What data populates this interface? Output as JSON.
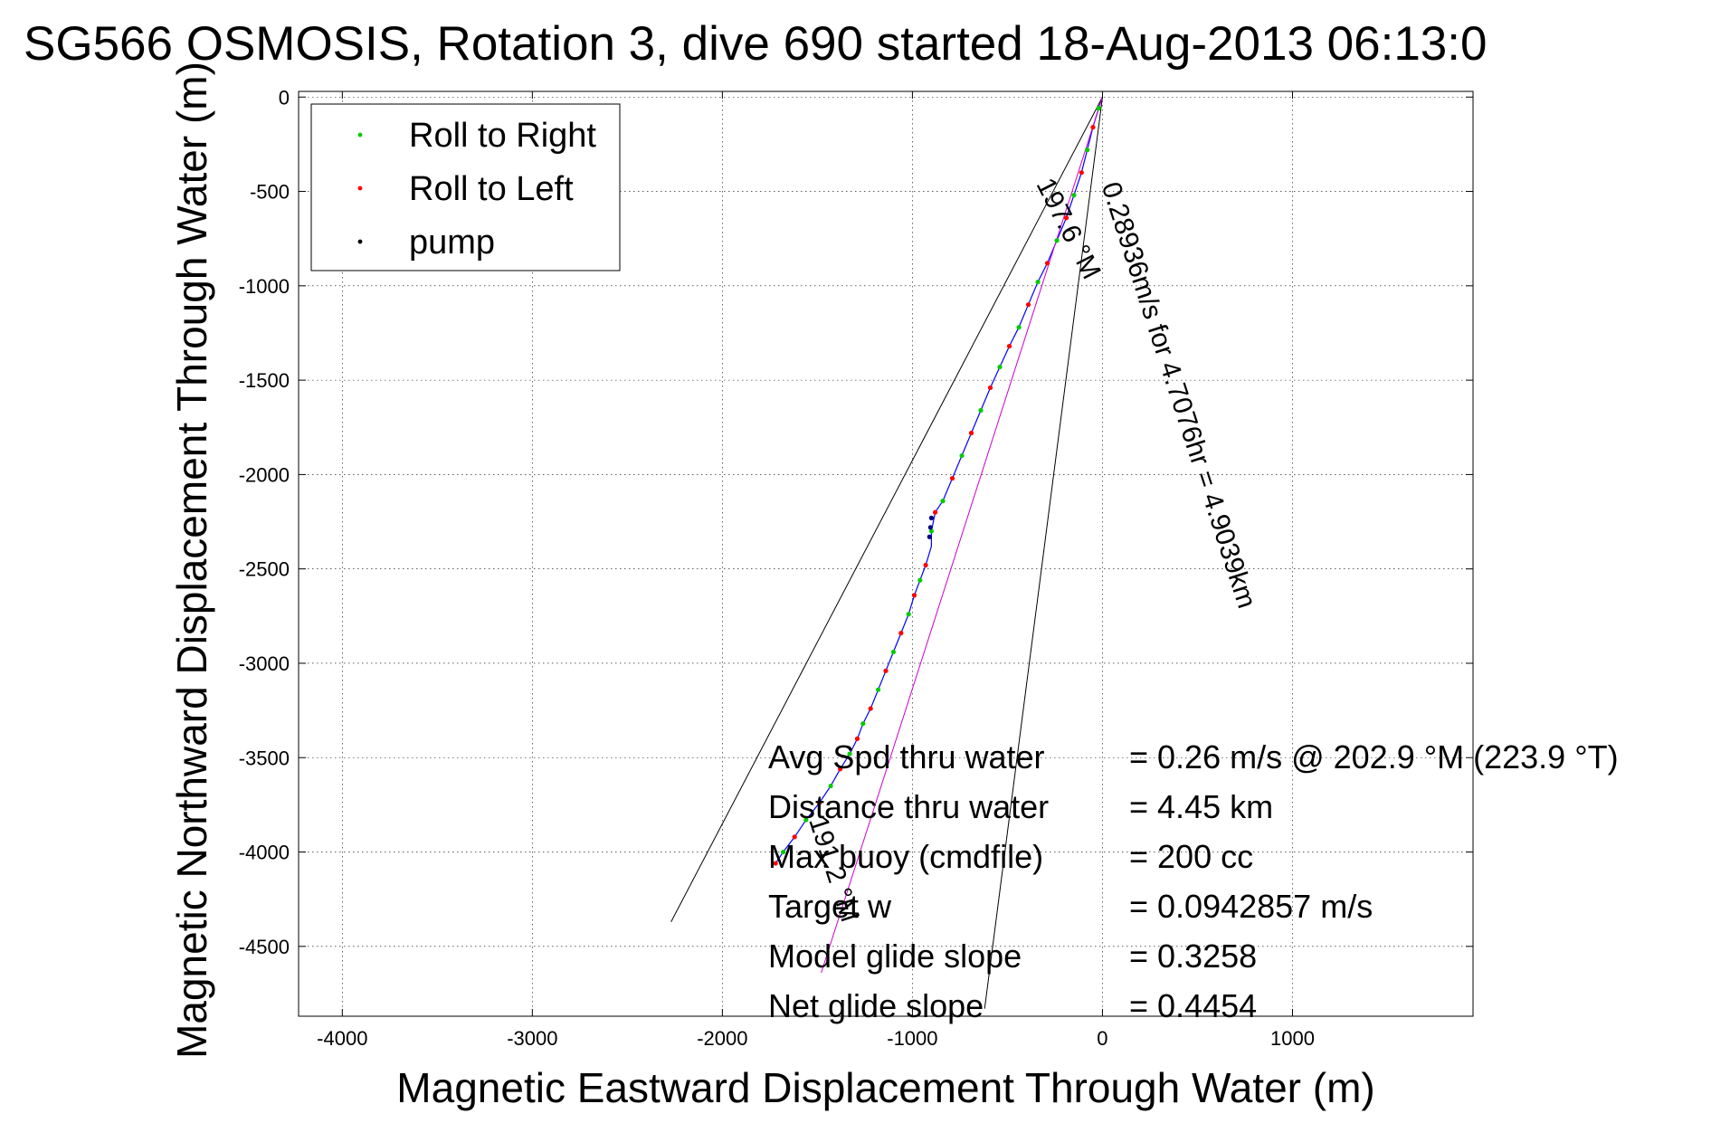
{
  "chart_data": {
    "type": "line",
    "title": "SG566 OSMOSIS, Rotation 3, dive 690 started 18-Aug-2013 06:13:0",
    "xlabel": "Magnetic Eastward Displacement Through Water (m)",
    "ylabel": "Magnetic Northward Displacement Through Water (m)",
    "xlim": [
      -4230,
      1950
    ],
    "ylim": [
      -4870,
      30
    ],
    "xticks": [
      -4000,
      -3000,
      -2000,
      -1000,
      0,
      1000
    ],
    "yticks": [
      0,
      -500,
      -1000,
      -1500,
      -2000,
      -2500,
      -3000,
      -3500,
      -4000,
      -4500
    ],
    "grid": true,
    "legend_position": "top-left",
    "legend": [
      {
        "label": "Roll to Right",
        "color": "#00cc00"
      },
      {
        "label": "Roll to Left",
        "color": "#ff0000"
      },
      {
        "label": "pump",
        "color": "#000000"
      }
    ],
    "series": [
      {
        "type": "line",
        "color": "#0000ff",
        "x": [
          0,
          -20,
          -50,
          -80,
          -110,
          -150,
          -190,
          -240,
          -290,
          -340,
          -390,
          -440,
          -490,
          -540,
          -590,
          -640,
          -690,
          -740,
          -790,
          -840,
          -880,
          -900,
          -900,
          -930,
          -960,
          -990,
          -1020,
          -1060,
          -1100,
          -1140,
          -1180,
          -1220,
          -1260,
          -1290,
          -1330,
          -1380,
          -1430,
          -1490,
          -1560,
          -1620,
          -1680,
          -1720
        ],
        "y": [
          0,
          -60,
          -160,
          -280,
          -400,
          -520,
          -640,
          -760,
          -880,
          -980,
          -1100,
          -1220,
          -1320,
          -1430,
          -1540,
          -1660,
          -1780,
          -1900,
          -2020,
          -2140,
          -2200,
          -2300,
          -2380,
          -2480,
          -2560,
          -2640,
          -2740,
          -2840,
          -2940,
          -3040,
          -3140,
          -3240,
          -3320,
          -3400,
          -3480,
          -3560,
          -3650,
          -3740,
          -3830,
          -3920,
          -4000,
          -4060
        ]
      },
      {
        "type": "line",
        "color": "#cc00cc",
        "x": [
          0,
          -1480
        ],
        "y": [
          0,
          -4640
        ]
      }
    ],
    "markers_right": {
      "color": "#00cc00",
      "x": [
        -20,
        -80,
        -150,
        -240,
        -340,
        -440,
        -540,
        -640,
        -740,
        -840,
        -900,
        -960,
        -1020,
        -1100,
        -1180,
        -1260,
        -1330,
        -1430,
        -1560,
        -1680
      ],
      "y": [
        -60,
        -280,
        -520,
        -760,
        -980,
        -1220,
        -1430,
        -1660,
        -1900,
        -2140,
        -2300,
        -2560,
        -2740,
        -2940,
        -3140,
        -3320,
        -3480,
        -3650,
        -3830,
        -4000
      ]
    },
    "markers_left": {
      "color": "#ff0000",
      "x": [
        -50,
        -110,
        -190,
        -290,
        -390,
        -490,
        -590,
        -690,
        -790,
        -880,
        -930,
        -990,
        -1060,
        -1140,
        -1220,
        -1290,
        -1380,
        -1490,
        -1620,
        -1720
      ],
      "y": [
        -160,
        -400,
        -640,
        -880,
        -1100,
        -1320,
        -1540,
        -1780,
        -2020,
        -2200,
        -2480,
        -2640,
        -2840,
        -3040,
        -3240,
        -3400,
        -3560,
        -3740,
        -3920,
        -4060
      ]
    },
    "markers_pump": {
      "color": "#000080",
      "x": [
        -900,
        -905,
        -910
      ],
      "y": [
        -2230,
        -2280,
        -2330
      ]
    },
    "reference_lines": [
      {
        "x": [
          0,
          -2270
        ],
        "y": [
          0,
          -4370
        ]
      },
      {
        "x": [
          0,
          -620
        ],
        "y": [
          0,
          -4830
        ]
      }
    ],
    "line_labels": [
      {
        "text": "197.6 °M",
        "x": -350,
        "y": -460,
        "angle_deg": 63
      },
      {
        "text": "0.28936m/s for 4.7076hr = 4.9039km",
        "x": -5,
        "y": -470,
        "angle_deg": 72
      },
      {
        "text": "191.2 °M",
        "x": -1545,
        "y": -3830,
        "angle_deg": 72
      }
    ],
    "annotations": [
      {
        "label": "Avg Spd thru water",
        "value": "=  0.26 m/s @ 202.9 °M (223.9 °T)"
      },
      {
        "label": "Distance thru water",
        "value": "=  4.45 km"
      },
      {
        "label": "Max buoy (cmdfile)",
        "value": "= 200 cc"
      },
      {
        "label": "Target w",
        "value": "= 0.0942857 m/s"
      },
      {
        "label": "Model glide slope",
        "value": "= 0.3258"
      },
      {
        "label": "Net glide slope",
        "value": "= 0.4454"
      }
    ]
  }
}
